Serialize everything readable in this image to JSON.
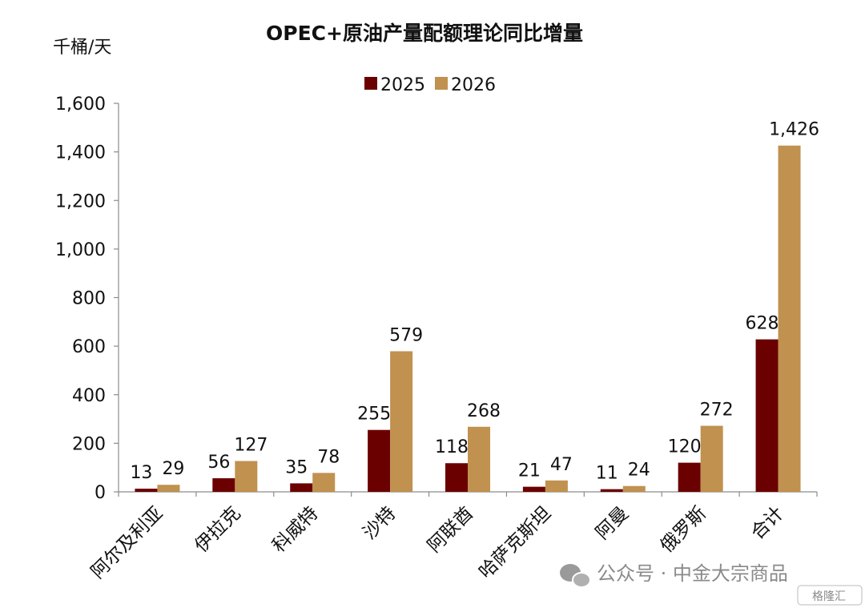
{
  "chart_data": {
    "type": "bar",
    "title": "OPEC+原油产量配额理论同比增量",
    "ylabel": "千桶/天",
    "xlabel": "",
    "ylim": [
      0,
      1600
    ],
    "yticks": [
      0,
      200,
      400,
      600,
      800,
      1000,
      1200,
      1400,
      1600
    ],
    "ytick_labels": [
      "0",
      "200",
      "400",
      "600",
      "800",
      "1,000",
      "1,200",
      "1,400",
      "1,600"
    ],
    "categories": [
      "阿尔及利亚",
      "伊拉克",
      "科威特",
      "沙特",
      "阿联酋",
      "哈萨克斯坦",
      "阿曼",
      "俄罗斯",
      "合计"
    ],
    "series": [
      {
        "name": "2025",
        "color": "#6b0000",
        "values": [
          13,
          56,
          35,
          255,
          118,
          21,
          11,
          120,
          628
        ],
        "labels": [
          "13",
          "56",
          "35",
          "255",
          "118",
          "21",
          "11",
          "120",
          "628"
        ]
      },
      {
        "name": "2026",
        "color": "#c0914f",
        "values": [
          29,
          127,
          78,
          579,
          268,
          47,
          24,
          272,
          1426
        ],
        "labels": [
          "29",
          "127",
          "78",
          "579",
          "268",
          "47",
          "24",
          "272",
          "1,426"
        ]
      }
    ],
    "legend_position": "top-center",
    "grid": false
  },
  "watermark": {
    "text": "公众号 · 中金大宗商品",
    "badge": "格隆汇"
  }
}
